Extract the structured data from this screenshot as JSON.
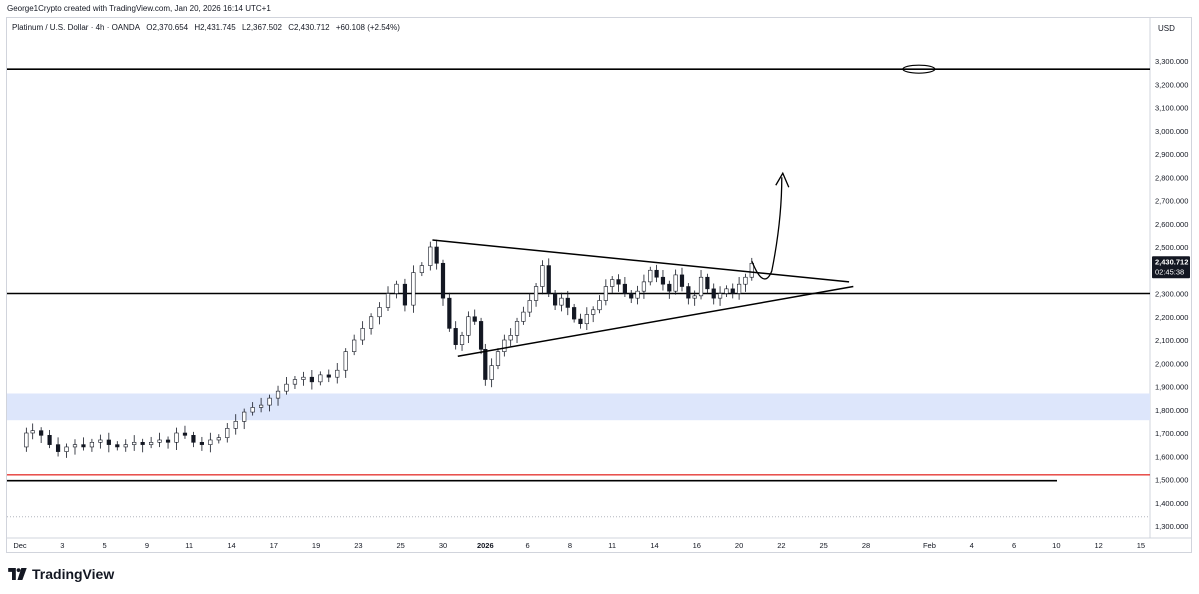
{
  "header": {
    "attribution": "George1Crypto created with TradingView.com, Jan 20, 2026 16:14 UTC+1"
  },
  "legend": {
    "symbol": "Platinum / U.S. Dollar · 4h · OANDA",
    "open": "O2,370.654",
    "high": "H2,431.745",
    "low": "L2,367.502",
    "close": "C2,430.712",
    "change": "+60.108 (+2.54%)"
  },
  "price_axis": {
    "currency": "USD"
  },
  "last_price": {
    "value": "2,430.712",
    "countdown": "02:45:38",
    "color": "#131722"
  },
  "branding": {
    "name": "TradingView"
  },
  "colors": {
    "up_candle": "#131722",
    "down_candle": "#131722",
    "support_line": "#000000",
    "red_level": "#e53935",
    "blue_zone": "#dde6fb",
    "dotted_level": "#b2b5be"
  },
  "chart_data": {
    "type": "candlestick",
    "title": "Platinum / U.S. Dollar · 4h · OANDA",
    "ylim": [
      1250,
      3400
    ],
    "yticks": [
      1300,
      1400,
      1500,
      1600,
      1700,
      1800,
      1900,
      2000,
      2100,
      2200,
      2300,
      2400,
      2500,
      2600,
      2700,
      2800,
      2900,
      3000,
      3100,
      3200,
      3300
    ],
    "ytick_labels": [
      "1,300.000",
      "1,400.000",
      "1,500.000",
      "1,600.000",
      "1,700.000",
      "1,800.000",
      "1,900.000",
      "2,000.000",
      "2,100.000",
      "2,200.000",
      "2,300.000",
      "2,400.000",
      "2,500.000",
      "2,600.000",
      "2,700.000",
      "2,800.000",
      "2,900.000",
      "3,000.000",
      "3,100.000",
      "3,200.000",
      "3,300.000"
    ],
    "xticks": [
      {
        "label": "Dec",
        "day": 0
      },
      {
        "label": "3",
        "day": 2
      },
      {
        "label": "5",
        "day": 4
      },
      {
        "label": "9",
        "day": 6
      },
      {
        "label": "11",
        "day": 8
      },
      {
        "label": "14",
        "day": 10
      },
      {
        "label": "17",
        "day": 12
      },
      {
        "label": "19",
        "day": 14
      },
      {
        "label": "23",
        "day": 16
      },
      {
        "label": "25",
        "day": 18
      },
      {
        "label": "30",
        "day": 20
      },
      {
        "label": "2026",
        "day": 22,
        "bold": true
      },
      {
        "label": "6",
        "day": 24
      },
      {
        "label": "8",
        "day": 26
      },
      {
        "label": "11",
        "day": 28
      },
      {
        "label": "14",
        "day": 30
      },
      {
        "label": "16",
        "day": 32
      },
      {
        "label": "20",
        "day": 34
      },
      {
        "label": "22",
        "day": 36
      },
      {
        "label": "25",
        "day": 38
      },
      {
        "label": "28",
        "day": 40
      },
      {
        "label": "Feb",
        "day": 43
      },
      {
        "label": "4",
        "day": 45
      },
      {
        "label": "6",
        "day": 47
      },
      {
        "label": "10",
        "day": 49
      },
      {
        "label": "12",
        "day": 51
      },
      {
        "label": "15",
        "day": 53
      }
    ],
    "price_path": [
      [
        0,
        1640
      ],
      [
        0.3,
        1700
      ],
      [
        0.6,
        1710
      ],
      [
        1,
        1690
      ],
      [
        1.4,
        1650
      ],
      [
        1.8,
        1620
      ],
      [
        2.2,
        1640
      ],
      [
        2.6,
        1650
      ],
      [
        3,
        1640
      ],
      [
        3.4,
        1660
      ],
      [
        3.8,
        1670
      ],
      [
        4.2,
        1650
      ],
      [
        4.6,
        1640
      ],
      [
        5,
        1650
      ],
      [
        5.4,
        1660
      ],
      [
        5.8,
        1650
      ],
      [
        6.2,
        1660
      ],
      [
        6.6,
        1670
      ],
      [
        7,
        1660
      ],
      [
        7.4,
        1700
      ],
      [
        7.8,
        1690
      ],
      [
        8.2,
        1660
      ],
      [
        8.6,
        1650
      ],
      [
        9,
        1670
      ],
      [
        9.4,
        1680
      ],
      [
        9.8,
        1720
      ],
      [
        10.2,
        1750
      ],
      [
        10.6,
        1790
      ],
      [
        11,
        1810
      ],
      [
        11.4,
        1820
      ],
      [
        11.8,
        1850
      ],
      [
        12.2,
        1880
      ],
      [
        12.6,
        1910
      ],
      [
        13,
        1930
      ],
      [
        13.4,
        1940
      ],
      [
        13.8,
        1920
      ],
      [
        14.2,
        1950
      ],
      [
        14.6,
        1940
      ],
      [
        15,
        1970
      ],
      [
        15.4,
        2050
      ],
      [
        15.8,
        2100
      ],
      [
        16.2,
        2150
      ],
      [
        16.6,
        2200
      ],
      [
        17,
        2240
      ],
      [
        17.4,
        2300
      ],
      [
        17.8,
        2340
      ],
      [
        18.2,
        2250
      ],
      [
        18.6,
        2390
      ],
      [
        19,
        2420
      ],
      [
        19.4,
        2500
      ],
      [
        19.7,
        2430
      ],
      [
        20,
        2280
      ],
      [
        20.3,
        2150
      ],
      [
        20.6,
        2080
      ],
      [
        20.9,
        2120
      ],
      [
        21.2,
        2200
      ],
      [
        21.5,
        2180
      ],
      [
        21.8,
        2060
      ],
      [
        22,
        1930
      ],
      [
        22.3,
        1990
      ],
      [
        22.6,
        2050
      ],
      [
        22.9,
        2100
      ],
      [
        23.2,
        2120
      ],
      [
        23.5,
        2180
      ],
      [
        23.8,
        2220
      ],
      [
        24.1,
        2270
      ],
      [
        24.4,
        2330
      ],
      [
        24.7,
        2420
      ],
      [
        25,
        2300
      ],
      [
        25.3,
        2250
      ],
      [
        25.6,
        2280
      ],
      [
        25.9,
        2240
      ],
      [
        26.2,
        2190
      ],
      [
        26.5,
        2170
      ],
      [
        26.8,
        2210
      ],
      [
        27.1,
        2230
      ],
      [
        27.4,
        2270
      ],
      [
        27.7,
        2330
      ],
      [
        28,
        2360
      ],
      [
        28.3,
        2340
      ],
      [
        28.6,
        2300
      ],
      [
        28.9,
        2280
      ],
      [
        29.2,
        2310
      ],
      [
        29.5,
        2350
      ],
      [
        29.8,
        2400
      ],
      [
        30.1,
        2370
      ],
      [
        30.4,
        2340
      ],
      [
        30.7,
        2310
      ],
      [
        31,
        2380
      ],
      [
        31.3,
        2330
      ],
      [
        31.6,
        2280
      ],
      [
        31.9,
        2290
      ],
      [
        32.2,
        2370
      ],
      [
        32.5,
        2320
      ],
      [
        32.8,
        2280
      ],
      [
        33.1,
        2300
      ],
      [
        33.4,
        2320
      ],
      [
        33.7,
        2300
      ],
      [
        34,
        2340
      ],
      [
        34.3,
        2370
      ],
      [
        34.6,
        2430
      ]
    ],
    "annotations": {
      "horizontal_lines": [
        3265,
        2300,
        1520,
        1495
      ],
      "zone": [
        1755,
        1870
      ],
      "dotted_level": 1340,
      "triangle_upper": [
        [
          19.5,
          2530
        ],
        [
          39.2,
          2350
        ]
      ],
      "triangle_lower": [
        [
          20.7,
          2030
        ],
        [
          39.4,
          2330
        ]
      ],
      "ellipse_at": [
        42.5,
        3265
      ]
    }
  }
}
